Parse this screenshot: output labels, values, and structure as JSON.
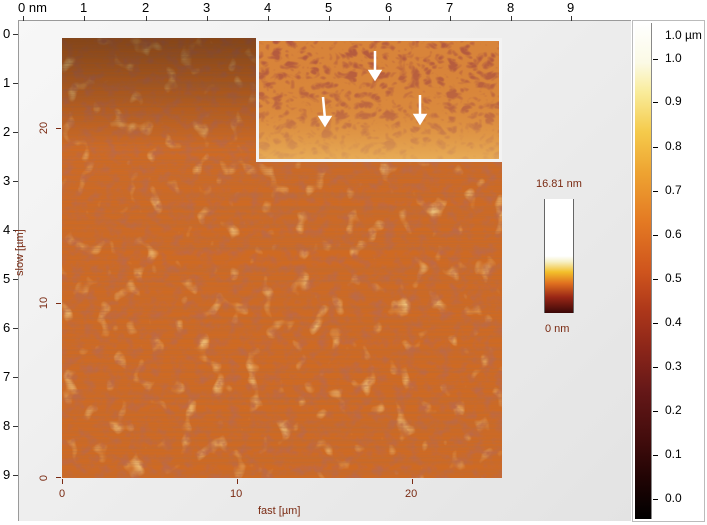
{
  "top_ruler": {
    "labels": [
      "0 nm",
      "1",
      "2",
      "3",
      "4",
      "5",
      "6",
      "7",
      "8",
      "9"
    ]
  },
  "left_ruler": {
    "labels": [
      "0",
      "1",
      "2",
      "3",
      "4",
      "5",
      "6",
      "7",
      "8",
      "9"
    ]
  },
  "image_axes": {
    "x_label": "fast [µm]",
    "y_label": "slow [µm]",
    "x_ticks": [
      "0",
      "10",
      "20"
    ],
    "y_ticks": [
      "20",
      "10",
      "0"
    ]
  },
  "mini_scale": {
    "max_label": "16.81 nm",
    "min_label": "0 nm"
  },
  "colorbar": {
    "unit_label": "1.0 µm",
    "labels": [
      "1.0",
      "0.9",
      "0.8",
      "0.7",
      "0.6",
      "0.5",
      "0.4",
      "0.3",
      "0.2",
      "0.1",
      "0.0"
    ]
  },
  "colors": {
    "image_base": "#c9631f",
    "axis_text": "#7a2a12"
  }
}
